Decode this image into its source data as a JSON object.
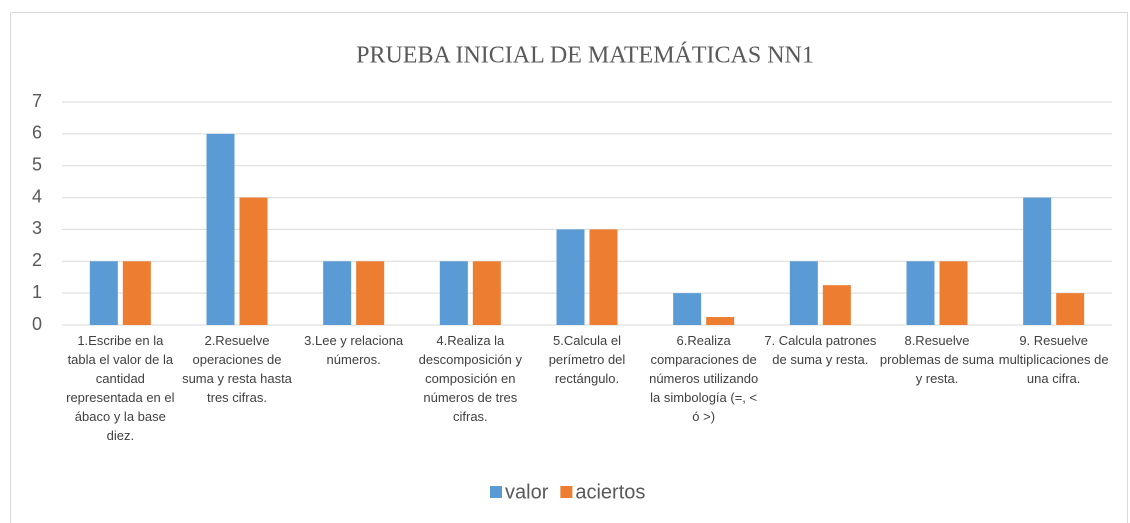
{
  "chart_data": {
    "type": "bar",
    "title": "PRUEBA INICIAL DE MATEMÁTICAS  NN1",
    "categories": [
      "1.Escribe en la tabla el valor de la cantidad representada en el ábaco y la base diez.",
      "2.Resuelve operaciones de suma y resta hasta tres cifras.",
      "3.Lee y relaciona números.",
      "4.Realiza la descomposición y composición en números de tres cifras.",
      "5.Calcula el perímetro del rectángulo.",
      "6.Realiza comparaciones de números utilizando la simbología (=, < ó >)",
      "7. Calcula patrones de suma y resta.",
      "8.Resuelve problemas de suma y resta.",
      "9. Resuelve multiplicaciones de una cifra."
    ],
    "series": [
      {
        "name": "valor",
        "color": "#5b9bd5",
        "values": [
          2,
          6,
          2,
          2,
          3,
          1,
          2,
          2,
          4
        ]
      },
      {
        "name": "aciertos",
        "color": "#ed7d31",
        "values": [
          2,
          4,
          2,
          2,
          3,
          0.25,
          1.25,
          2,
          1
        ]
      }
    ],
    "ylim": [
      0,
      7
    ],
    "yticks": [
      0,
      1,
      2,
      3,
      4,
      5,
      6,
      7
    ],
    "grid": true,
    "legend": "bottom"
  }
}
